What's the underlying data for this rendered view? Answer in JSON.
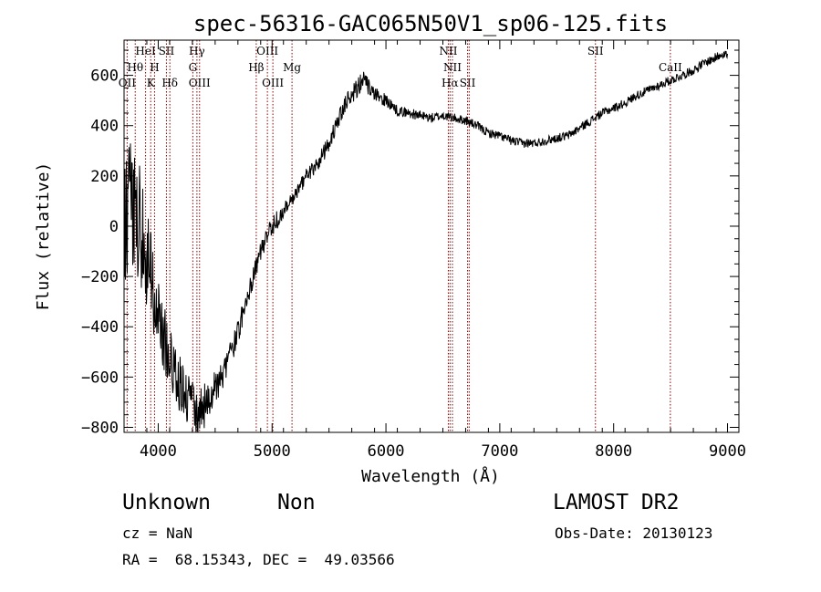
{
  "chart_data": {
    "type": "line",
    "title": "spec-56316-GAC065N50V1_sp06-125.fits",
    "xlabel": "Wavelength (Å)",
    "ylabel": "Flux (relative)",
    "xlim": [
      3700,
      9100
    ],
    "ylim": [
      -820,
      740
    ],
    "xticks": [
      4000,
      5000,
      6000,
      7000,
      8000,
      9000
    ],
    "xtick_labels": [
      "4000",
      "5000",
      "6000",
      "7000",
      "8000",
      "9000"
    ],
    "yticks": [
      -800,
      -600,
      -400,
      -200,
      0,
      200,
      400,
      600
    ],
    "ytick_labels": [
      "−800",
      "−600",
      "−400",
      "−200",
      "0",
      "200",
      "400",
      "600"
    ],
    "grid": false,
    "series": [
      {
        "color": "#000000",
        "x": [
          3700,
          3750,
          3800,
          3850,
          3900,
          3950,
          4000,
          4050,
          4100,
          4150,
          4200,
          4250,
          4300,
          4350,
          4400,
          4450,
          4500,
          4600,
          4700,
          4800,
          4900,
          5000,
          5100,
          5200,
          5300,
          5400,
          5500,
          5600,
          5700,
          5750,
          5800,
          5850,
          5900,
          6000,
          6100,
          6200,
          6300,
          6400,
          6500,
          6600,
          6700,
          6800,
          6900,
          7000,
          7100,
          7200,
          7300,
          7400,
          7500,
          7600,
          7700,
          7800,
          7900,
          8000,
          8100,
          8200,
          8300,
          8400,
          8500,
          8600,
          8700,
          8800,
          8900,
          8950,
          9000
        ],
        "y": [
          -20,
          100,
          60,
          -10,
          -120,
          -250,
          -360,
          -440,
          -520,
          -580,
          -640,
          -680,
          -720,
          -740,
          -720,
          -680,
          -640,
          -560,
          -420,
          -250,
          -100,
          0,
          60,
          120,
          200,
          250,
          330,
          440,
          530,
          560,
          580,
          550,
          520,
          500,
          460,
          450,
          440,
          430,
          440,
          430,
          420,
          400,
          370,
          360,
          340,
          330,
          330,
          340,
          350,
          360,
          390,
          420,
          450,
          470,
          490,
          520,
          540,
          560,
          580,
          600,
          620,
          650,
          670,
          690,
          680
        ],
        "noise": [
          250,
          260,
          250,
          240,
          210,
          190,
          160,
          150,
          130,
          120,
          110,
          100,
          100,
          90,
          90,
          80,
          70,
          60,
          50,
          45,
          40,
          40,
          35,
          30,
          30,
          30,
          35,
          40,
          45,
          45,
          40,
          35,
          30,
          25,
          20,
          20,
          20,
          20,
          18,
          18,
          18,
          18,
          18,
          18,
          18,
          18,
          18,
          18,
          18,
          18,
          18,
          18,
          18,
          18,
          18,
          18,
          18,
          18,
          18,
          18,
          18,
          18,
          20,
          20,
          20
        ]
      }
    ],
    "lines": [
      {
        "x": 3727,
        "label": "OII",
        "row": 2,
        "color": "#8b0000"
      },
      {
        "x": 3798,
        "label": "Hθ",
        "row": 1,
        "color": "#8b0000"
      },
      {
        "x": 3889,
        "label": "HeI",
        "row": 0,
        "color": "#8b0000"
      },
      {
        "x": 3934,
        "label": "K",
        "row": 2,
        "color": "#8b0000"
      },
      {
        "x": 3968,
        "label": "H",
        "row": 1,
        "color": "#8b0000"
      },
      {
        "x": 4072,
        "label": "SII",
        "row": 0,
        "color": "#8b0000"
      },
      {
        "x": 4102,
        "label": "Hδ",
        "row": 2,
        "color": "#8b0000"
      },
      {
        "x": 4304,
        "label": "G",
        "row": 1,
        "color": "#8b0000"
      },
      {
        "x": 4340,
        "label": "Hγ",
        "row": 0,
        "color": "#8b0000"
      },
      {
        "x": 4363,
        "label": "OIII",
        "row": 2,
        "color": "#8b0000"
      },
      {
        "x": 4861,
        "label": "Hβ",
        "row": 1,
        "color": "#8b0000"
      },
      {
        "x": 4959,
        "label": "OIII",
        "row": 0,
        "color": "#8b0000"
      },
      {
        "x": 5007,
        "label": "OIII",
        "row": 2,
        "color": "#8b0000"
      },
      {
        "x": 5175,
        "label": "Mg",
        "row": 1,
        "color": "#8b0000"
      },
      {
        "x": 6548,
        "label": "NII",
        "row": 0,
        "color": "#8b0000"
      },
      {
        "x": 6563,
        "label": "Hα",
        "row": 2,
        "color": "#8b0000"
      },
      {
        "x": 6584,
        "label": "NII",
        "row": 1,
        "color": "#8b0000"
      },
      {
        "x": 6717,
        "label": "SII",
        "row": 2,
        "color": "#8b0000"
      },
      {
        "x": 6731,
        "label": "",
        "row": 2,
        "color": "#8b0000"
      },
      {
        "x": 7840,
        "label": "SII",
        "row": 0,
        "color": "#8b0000"
      },
      {
        "x": 8498,
        "label": "CaII",
        "row": 1,
        "color": "#8b0000"
      }
    ]
  },
  "info": {
    "class_label": "Unknown",
    "subclass_label": "Non",
    "survey": "LAMOST DR2",
    "cz": "cz = NaN",
    "obs_date": "Obs-Date: 20130123",
    "radec": "RA =  68.15343, DEC =  49.03566"
  }
}
